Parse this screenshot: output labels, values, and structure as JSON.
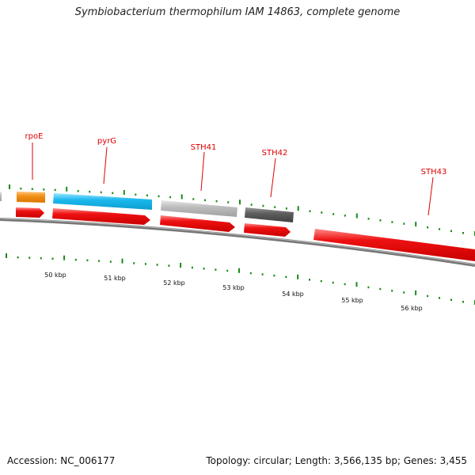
{
  "title": "Symbiobacterium thermophilum IAM 14863, complete genome",
  "footer": {
    "accession": "Accession: NC_006177",
    "summary": "Topology: circular; Length: 3,566,135 bp; Genes: 3,455"
  },
  "colors": {
    "label": "#dd0000",
    "tick": "#1a8a1a",
    "backbone": "#777777",
    "strand_gene": "#e41111",
    "rpoE": "#f29017",
    "pyrG": "#1bb8ee",
    "STH41": "#bbbbbb",
    "STH42": "#5e5e5e"
  },
  "axis": {
    "labels": [
      "50 kbp",
      "51 kbp",
      "52 kbp",
      "53 kbp",
      "54 kbp",
      "55 kbp",
      "56 kbp"
    ]
  },
  "genes": [
    {
      "name": "rpoE",
      "color_key": "rpoE"
    },
    {
      "name": "pyrG",
      "color_key": "pyrG"
    },
    {
      "name": "STH41",
      "color_key": "STH41"
    },
    {
      "name": "STH42",
      "color_key": "STH42"
    },
    {
      "name": "STH43",
      "color_key": "strand_gene"
    }
  ]
}
